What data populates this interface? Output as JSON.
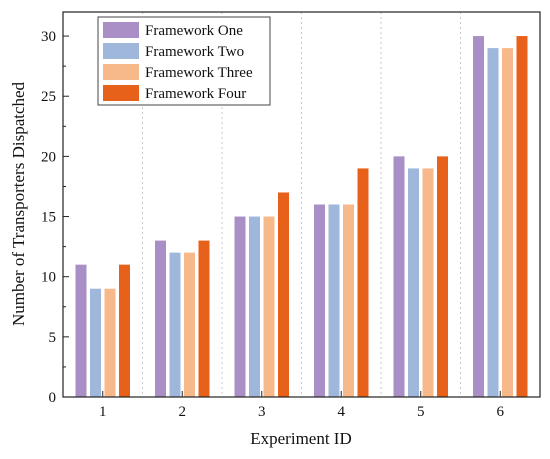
{
  "chart_data": {
    "type": "bar",
    "xlabel": "Experiment ID",
    "ylabel": "Number of Transporters Dispatched",
    "categories": [
      "1",
      "2",
      "3",
      "4",
      "5",
      "6"
    ],
    "ylim": [
      0,
      32
    ],
    "yticks": [
      0,
      5,
      10,
      15,
      20,
      25,
      30
    ],
    "grid": "vertical dotted",
    "legend": "top-left",
    "series": [
      {
        "name": "Framework One",
        "color": "#a98fc6",
        "values": [
          11,
          13,
          15,
          16,
          20,
          30
        ]
      },
      {
        "name": "Framework Two",
        "color": "#9fb7da",
        "values": [
          9,
          12,
          15,
          16,
          19,
          29
        ]
      },
      {
        "name": "Framework Three",
        "color": "#f8b98a",
        "values": [
          9,
          12,
          15,
          16,
          19,
          29
        ]
      },
      {
        "name": "Framework Four",
        "color": "#e8611a",
        "values": [
          11,
          13,
          17,
          19,
          20,
          30
        ]
      }
    ]
  }
}
